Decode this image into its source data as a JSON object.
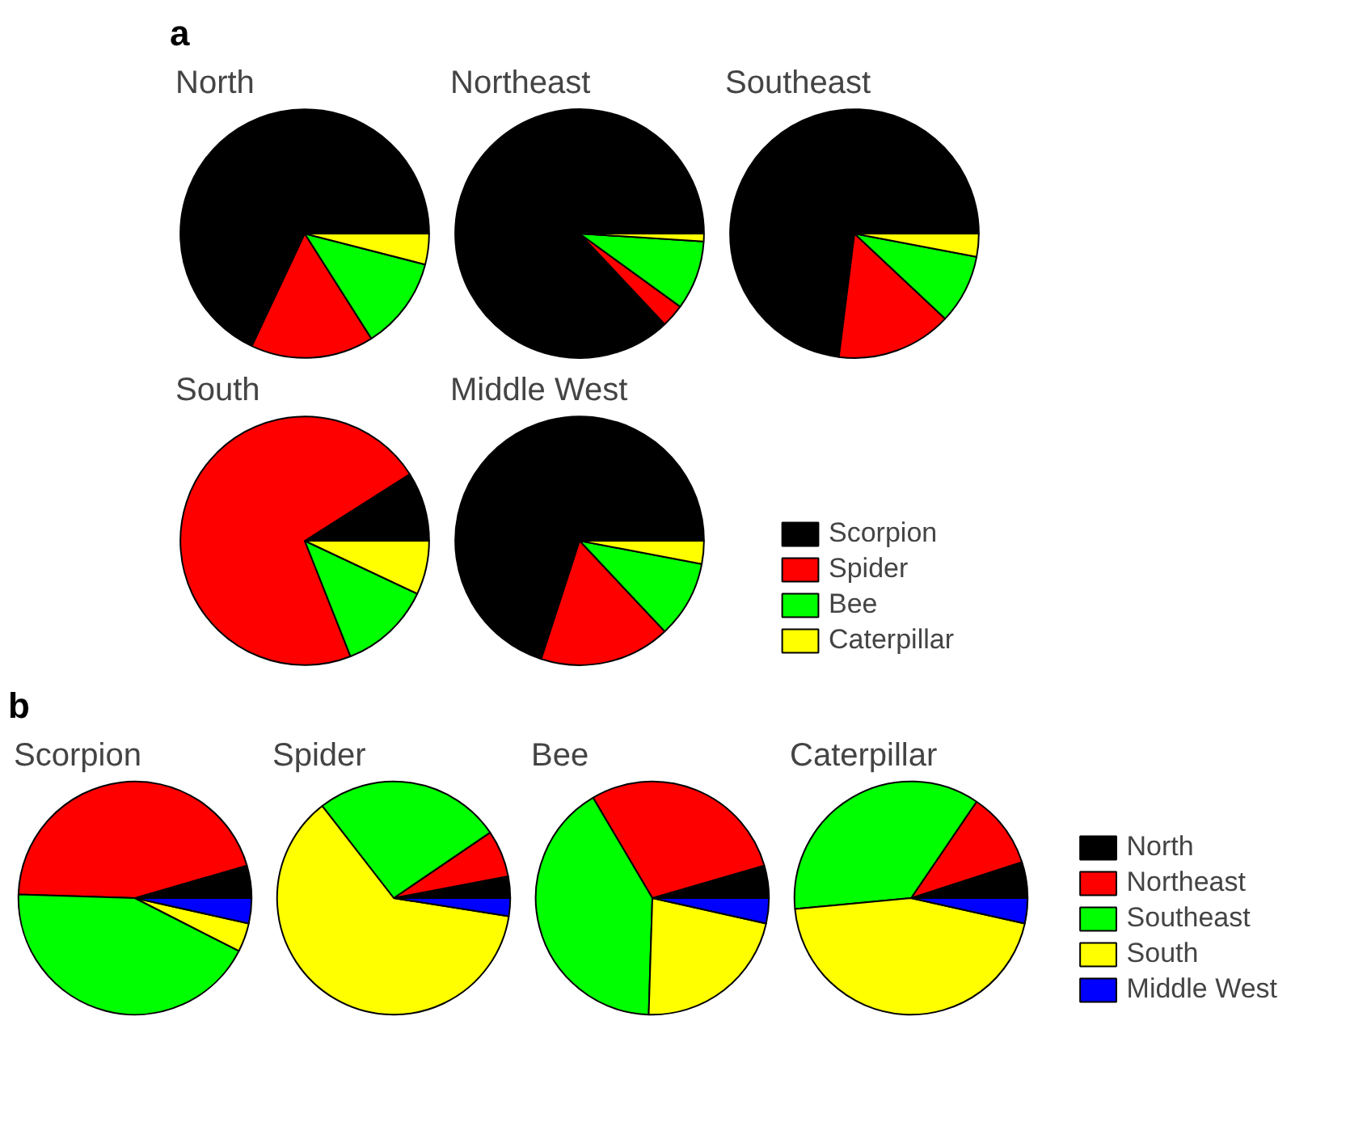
{
  "chart_data": [
    {
      "type": "pie",
      "annotations": [
        "a"
      ],
      "categories": [
        "Scorpion",
        "Spider",
        "Bee",
        "Caterpillar"
      ],
      "colors": [
        "#000000",
        "#ff0000",
        "#00ff00",
        "#ffff00"
      ],
      "legend": "right",
      "series": [
        {
          "name": "North",
          "values": [
            68,
            16,
            12,
            4
          ]
        },
        {
          "name": "Northeast",
          "values": [
            87,
            3,
            9,
            1
          ]
        },
        {
          "name": "Southeast",
          "values": [
            73,
            15,
            9,
            3
          ]
        },
        {
          "name": "South",
          "values": [
            9,
            72,
            12,
            7
          ]
        },
        {
          "name": "Middle West",
          "values": [
            70,
            17,
            10,
            3
          ]
        }
      ]
    },
    {
      "type": "pie",
      "annotations": [
        "b"
      ],
      "categories": [
        "North",
        "Northeast",
        "Southeast",
        "South",
        "Middle West"
      ],
      "colors": [
        "#000000",
        "#ff0000",
        "#00ff00",
        "#ffff00",
        "#0000ff"
      ],
      "legend": "right",
      "series": [
        {
          "name": "Scorpion",
          "values": [
            4.5,
            45,
            43,
            4,
            3.5
          ]
        },
        {
          "name": "Spider",
          "values": [
            3,
            6.5,
            26,
            62,
            2.5
          ]
        },
        {
          "name": "Bee",
          "values": [
            4.5,
            29,
            41,
            22,
            3.5
          ]
        },
        {
          "name": "Caterpillar",
          "values": [
            5,
            10.5,
            36,
            45,
            3.5
          ]
        }
      ]
    }
  ]
}
